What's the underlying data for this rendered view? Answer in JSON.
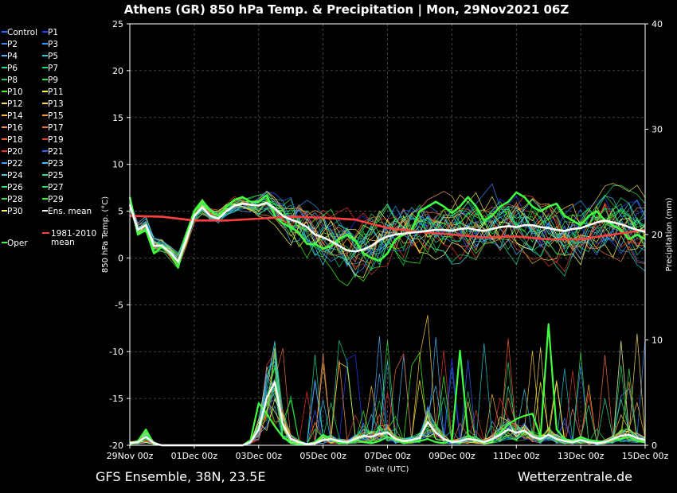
{
  "chart_data": {
    "type": "line",
    "title": "Athens  (GR)  850 hPa Temp. & Precipitation | Mon, 29Nov2021 06Z",
    "ylabel": "850 hPa Temp. (°C)",
    "y2label": "Precipitation (mm)",
    "xlabel": "Date (UTC)",
    "ylim": [
      -20,
      25
    ],
    "y2lim": [
      0,
      40
    ],
    "yticks": [
      -20,
      -15,
      -10,
      -5,
      0,
      5,
      10,
      15,
      20,
      25
    ],
    "y2ticks": [
      0,
      10,
      20,
      30,
      40
    ],
    "x_start": "29Nov 00z",
    "x_end": "15Dec 00z",
    "xtick_labels": [
      "29Nov 00z",
      "01Dec 00z",
      "03Dec 00z",
      "05Dec 00z",
      "07Dec 00z",
      "09Dec 00z",
      "11Dec 00z",
      "13Dec 00z",
      "15Dec 00z"
    ],
    "grid": true,
    "legend_position": "left",
    "legend": [
      {
        "name": "Control",
        "color": "#1e6cff"
      },
      {
        "name": "P1",
        "color": "#2b3cff"
      },
      {
        "name": "P2",
        "color": "#3b8cff"
      },
      {
        "name": "P3",
        "color": "#2a9cff"
      },
      {
        "name": "P4",
        "color": "#4cb4ff"
      },
      {
        "name": "P5",
        "color": "#22c8d8"
      },
      {
        "name": "P6",
        "color": "#20d8a0"
      },
      {
        "name": "P7",
        "color": "#10e070"
      },
      {
        "name": "P8",
        "color": "#22d060"
      },
      {
        "name": "P9",
        "color": "#30e040"
      },
      {
        "name": "P10",
        "color": "#40ff20"
      },
      {
        "name": "P11",
        "color": "#ffff40"
      },
      {
        "name": "P12",
        "color": "#f4e060"
      },
      {
        "name": "P13",
        "color": "#ffd040"
      },
      {
        "name": "P14",
        "color": "#ffc040"
      },
      {
        "name": "P15",
        "color": "#ffa030"
      },
      {
        "name": "P16",
        "color": "#f09060"
      },
      {
        "name": "P17",
        "color": "#f07040"
      },
      {
        "name": "P18",
        "color": "#ff6030"
      },
      {
        "name": "P19",
        "color": "#e04030"
      },
      {
        "name": "P20",
        "color": "#ff3030"
      },
      {
        "name": "P21",
        "color": "#3060ff"
      },
      {
        "name": "P22",
        "color": "#40a0ff"
      },
      {
        "name": "P23",
        "color": "#40c0ff"
      },
      {
        "name": "P24",
        "color": "#40d0e0"
      },
      {
        "name": "P25",
        "color": "#30e0a0"
      },
      {
        "name": "P26",
        "color": "#30e080"
      },
      {
        "name": "P27",
        "color": "#20e060"
      },
      {
        "name": "P28",
        "color": "#40e040"
      },
      {
        "name": "P29",
        "color": "#30ff30"
      },
      {
        "name": "P30",
        "color": "#ffff60"
      },
      {
        "name": "Ens. mean",
        "color": "#ffffff"
      },
      {
        "name": "Oper",
        "color": "#40ff40"
      },
      {
        "name": "1981-2010 mean",
        "color": "#ff4040"
      }
    ],
    "ens_mean": {
      "name": "Ens. mean",
      "x": [
        0,
        0.25,
        0.5,
        0.75,
        1,
        1.25,
        1.5,
        1.75,
        2,
        2.25,
        2.5,
        2.75,
        3,
        3.25,
        3.5,
        3.75,
        4,
        4.25,
        4.5,
        4.75,
        5,
        5.25,
        5.5,
        5.75,
        6,
        6.25,
        6.5,
        6.75,
        7,
        7.25,
        7.5,
        7.75,
        8,
        8.25,
        8.5,
        8.75,
        9,
        9.25,
        9.5,
        9.75,
        10,
        10.25,
        10.5,
        10.75,
        11,
        11.25,
        11.5,
        11.75,
        12,
        12.25,
        12.5,
        12.75,
        13,
        13.25,
        13.5,
        13.75,
        14,
        14.25,
        14.5,
        14.75,
        15,
        15.25,
        15.5,
        15.75,
        16
      ],
      "temp": [
        5.7,
        3.0,
        3.5,
        1.3,
        1.3,
        0.6,
        -0.4,
        2.0,
        4.5,
        5.4,
        4.5,
        4.2,
        5.0,
        5.6,
        5.8,
        5.7,
        5.6,
        5.9,
        5.3,
        4.5,
        4.1,
        3.8,
        3.3,
        2.5,
        2.2,
        1.8,
        1.3,
        0.8,
        0.7,
        0.9,
        1.3,
        1.9,
        2.3,
        2.5,
        2.6,
        2.7,
        2.8,
        2.9,
        3.0,
        3.0,
        2.9,
        3.1,
        3.2,
        3.0,
        2.9,
        3.1,
        3.3,
        3.4,
        3.3,
        3.5,
        3.5,
        3.3,
        3.2,
        3.0,
        2.9,
        3.1,
        3.2,
        3.5,
        3.8,
        4.0,
        3.8,
        3.6,
        3.3,
        3.0,
        2.8
      ],
      "precip": [
        0.2,
        0.3,
        0.8,
        0.2,
        0.0,
        0.0,
        0.0,
        0.0,
        0.0,
        0.0,
        0.0,
        0.0,
        0.0,
        0.0,
        0.0,
        0.3,
        1.5,
        4.5,
        6.0,
        2.0,
        0.6,
        0.3,
        0.1,
        0.2,
        0.5,
        0.6,
        0.4,
        0.3,
        0.6,
        0.9,
        0.8,
        1.1,
        1.2,
        0.6,
        0.4,
        0.5,
        0.7,
        2.2,
        1.2,
        0.6,
        0.3,
        0.4,
        0.6,
        0.5,
        0.3,
        0.6,
        1.0,
        1.5,
        1.2,
        1.4,
        0.8,
        0.6,
        1.0,
        0.6,
        0.4,
        0.3,
        0.5,
        0.3,
        0.2,
        0.3,
        0.6,
        0.9,
        1.0,
        0.7,
        0.5
      ]
    },
    "oper": {
      "name": "Oper",
      "x": [
        0,
        0.25,
        0.5,
        0.75,
        1,
        1.25,
        1.5,
        1.75,
        2,
        2.25,
        2.5,
        2.75,
        3,
        3.25,
        3.5,
        3.75,
        4,
        4.25,
        4.5,
        4.75,
        5,
        5.25,
        5.5,
        5.75,
        6,
        6.25,
        6.5,
        6.75,
        7,
        7.25,
        7.5,
        7.75,
        8,
        8.25,
        8.5,
        8.75,
        9,
        9.25,
        9.5,
        9.75,
        10,
        10.25,
        10.5,
        10.75,
        11,
        11.25,
        11.5,
        11.75,
        12,
        12.25,
        12.5,
        12.75,
        13,
        13.25,
        13.5,
        13.75,
        14,
        14.25,
        14.5,
        14.75,
        15,
        15.25,
        15.5,
        15.75,
        16
      ],
      "temp": [
        6.5,
        2.5,
        3.0,
        0.5,
        1.2,
        0.5,
        -1.0,
        2.5,
        5.0,
        6.0,
        5.0,
        4.5,
        5.5,
        6.2,
        6.5,
        6.0,
        6.0,
        6.7,
        4.5,
        3.7,
        3.3,
        2.7,
        1.5,
        1.5,
        1.0,
        1.3,
        2.0,
        2.5,
        1.8,
        0.5,
        0.0,
        -0.3,
        0.5,
        2.0,
        2.5,
        3.0,
        5.0,
        5.5,
        6.0,
        5.5,
        4.8,
        5.5,
        6.5,
        5.5,
        4.0,
        4.5,
        5.5,
        6.0,
        7.0,
        6.5,
        5.5,
        5.0,
        5.5,
        5.8,
        4.5,
        4.0,
        3.5,
        4.5,
        5.0,
        4.0,
        3.5,
        3.0,
        2.0,
        2.5,
        2.0
      ],
      "precip": [
        0.1,
        0.4,
        1.5,
        0.1,
        0.0,
        0.0,
        0.0,
        0.0,
        0.0,
        0.0,
        0.0,
        0.0,
        0.0,
        0.0,
        0.0,
        0.5,
        4.0,
        3.0,
        1.8,
        0.8,
        0.2,
        0.1,
        0.1,
        0.3,
        1.0,
        0.6,
        0.2,
        0.2,
        0.5,
        0.3,
        0.2,
        0.4,
        0.8,
        0.5,
        0.2,
        0.3,
        0.4,
        0.6,
        0.3,
        0.2,
        0.5,
        9.0,
        1.0,
        0.4,
        0.3,
        0.5,
        1.2,
        2.0,
        2.5,
        2.8,
        3.0,
        0.8,
        11.5,
        1.5,
        0.6,
        0.4,
        0.8,
        0.5,
        0.4,
        0.3,
        0.5,
        0.6,
        0.8,
        0.4,
        0.3
      ]
    },
    "climate_mean": {
      "name": "1981-2010 mean",
      "x": [
        0,
        1,
        2,
        3,
        4,
        5,
        6,
        7,
        8,
        9,
        10,
        11,
        12,
        13,
        14,
        15,
        16
      ],
      "temp": [
        4.5,
        4.4,
        4.0,
        4.0,
        4.2,
        4.4,
        4.3,
        4.1,
        3.2,
        2.8,
        2.5,
        2.2,
        2.3,
        2.0,
        2.0,
        2.5,
        3.0
      ]
    },
    "annotations": [
      "GFS Ensemble, 38N, 23.5E",
      "Wetterzentrale.de"
    ]
  }
}
